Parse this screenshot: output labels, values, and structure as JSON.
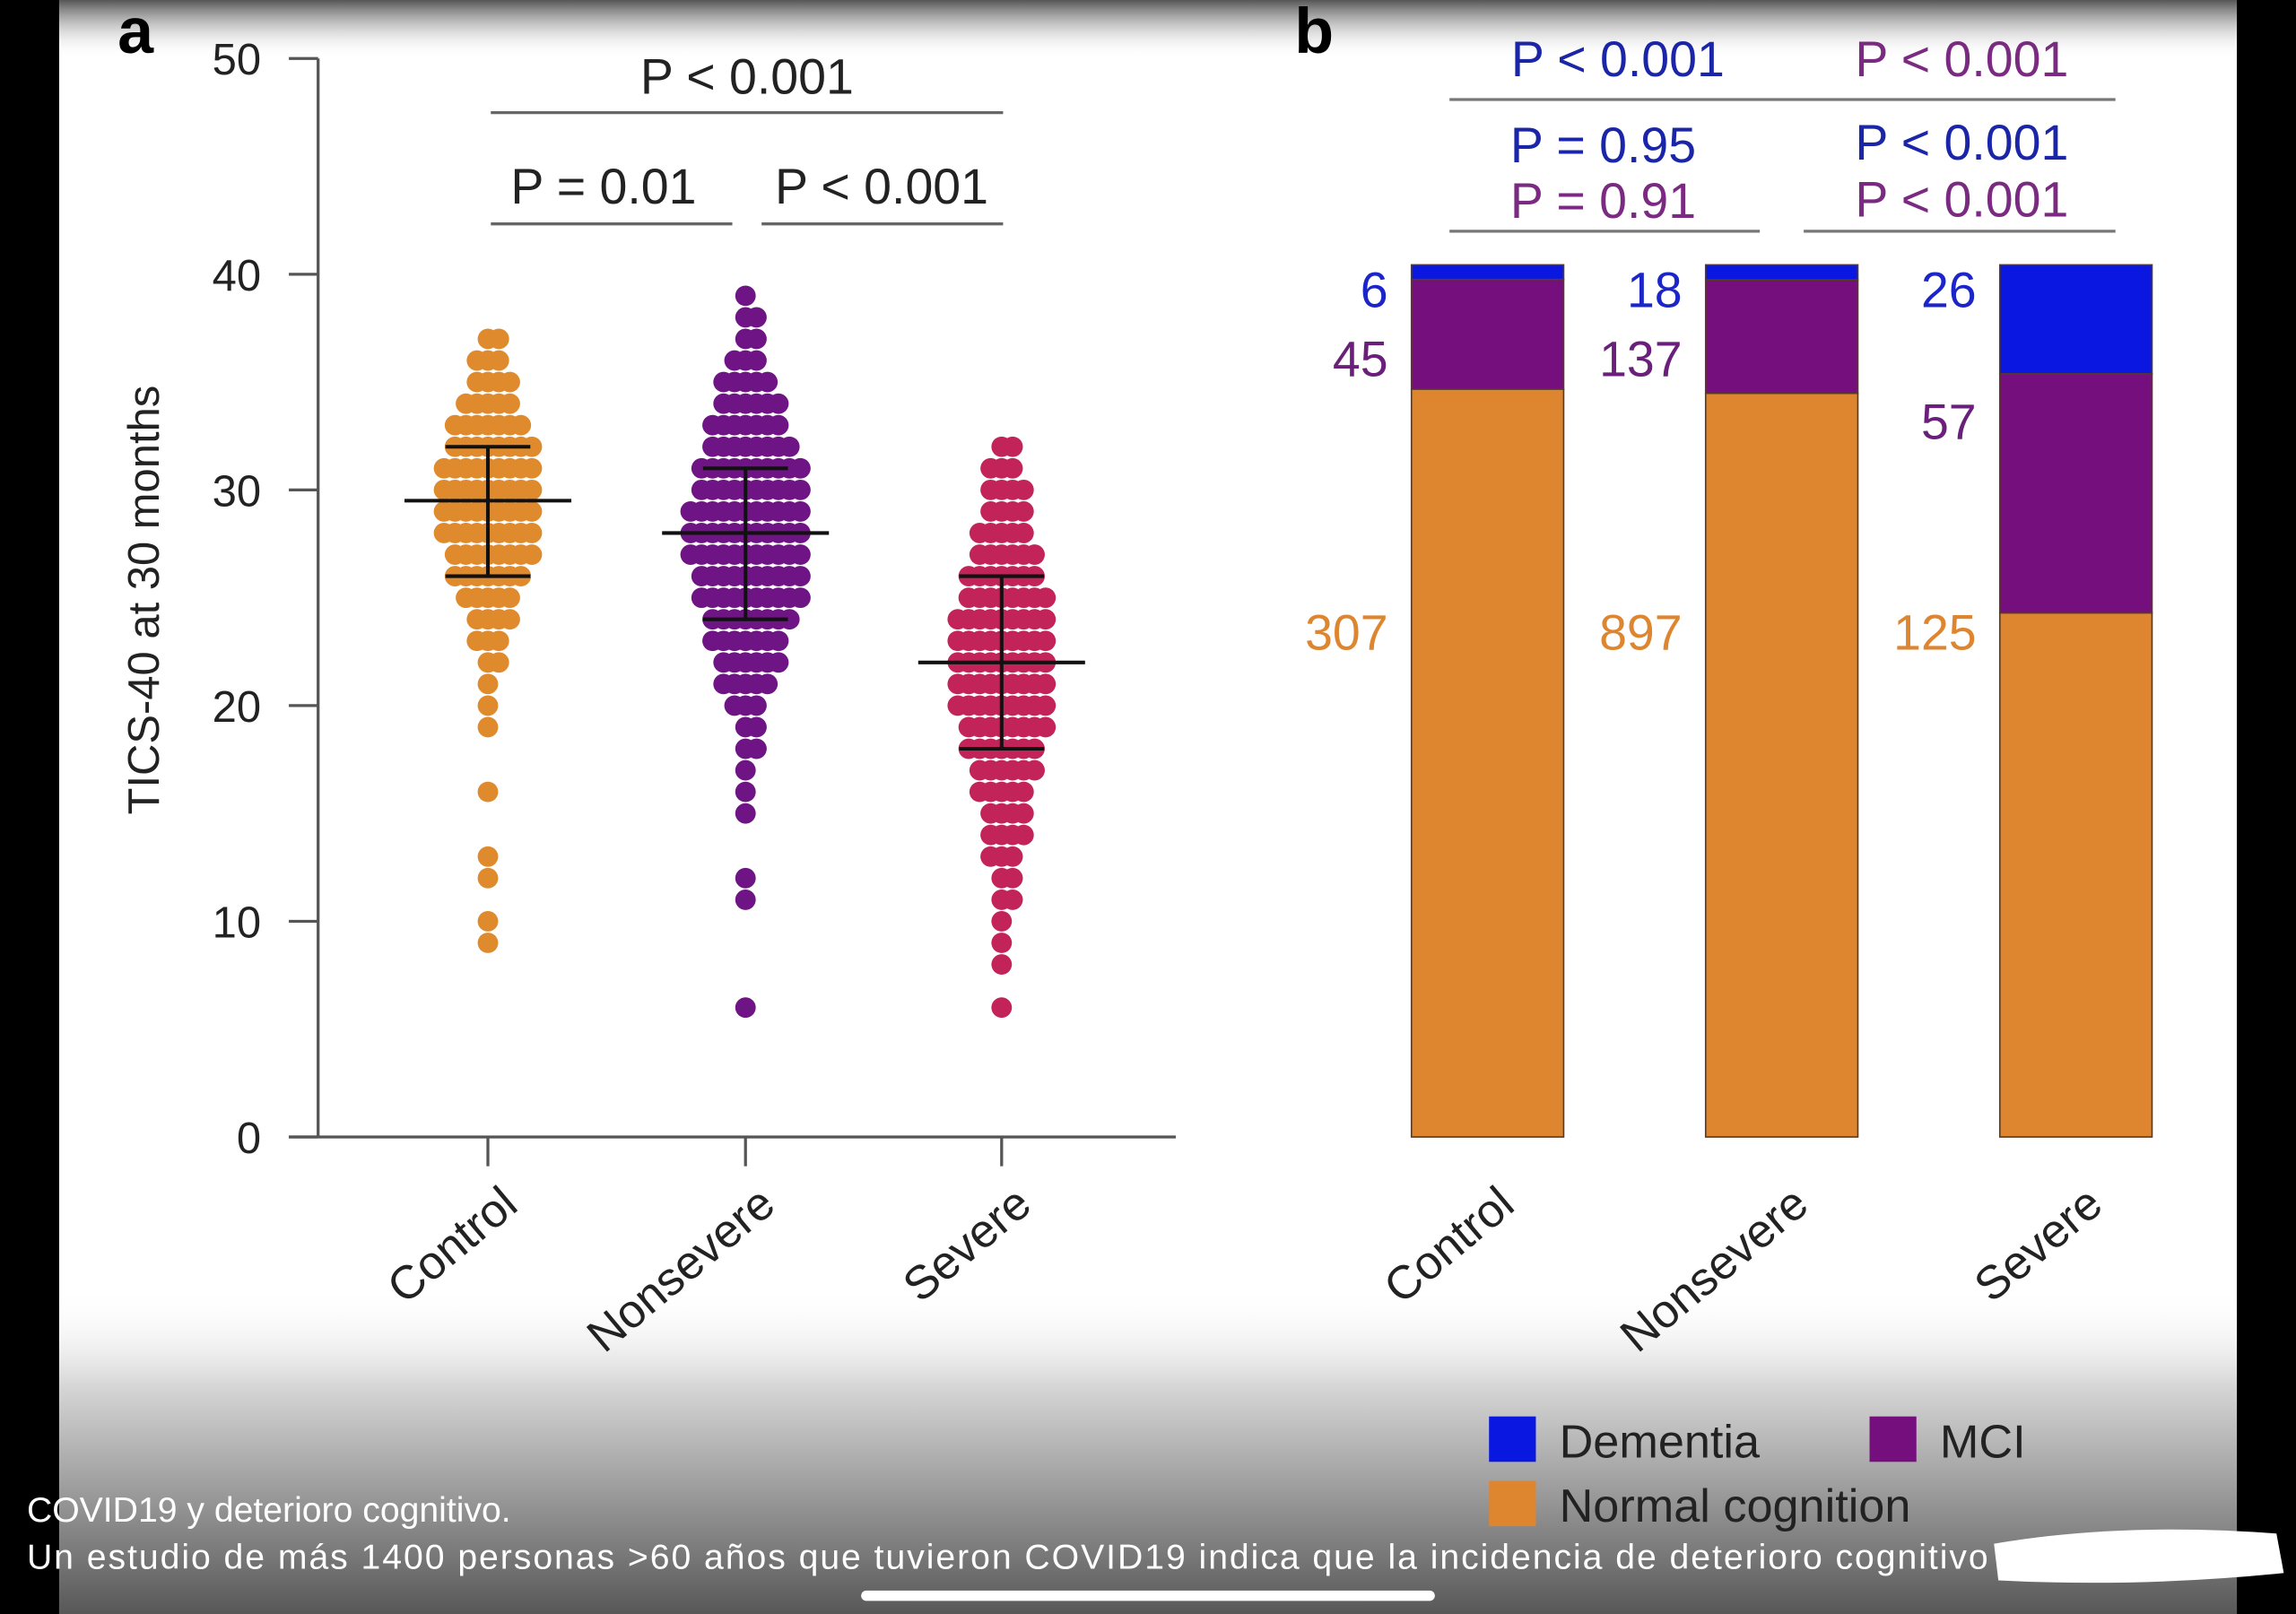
{
  "caption": {
    "line1": "COVID19 y deterioro cognitivo.",
    "line2": "Un estudio de más 1400 personas >60 años que tuvieron COVID19 indica que la incidencia de deterioro cognitivo"
  },
  "colors": {
    "control": "#e08a2e",
    "nonsevere": "#6f1484",
    "severe": "#c2245a",
    "dementia": "#0a17e0",
    "mci": "#760f7e",
    "normal": "#de8530"
  },
  "chart_data": [
    {
      "panel": "a",
      "type": "scatter",
      "ylabel": "TICS-40 at 30 months",
      "ylim": [
        0,
        50
      ],
      "yticks": [
        "0",
        "10",
        "20",
        "30",
        "40",
        "50"
      ],
      "categories": [
        "Control",
        "Nonsevere",
        "Severe"
      ],
      "groups": [
        {
          "name": "Control",
          "median": 29.5,
          "q1": 26,
          "q3": 32,
          "min": 9,
          "max": 37
        },
        {
          "name": "Nonsevere",
          "median": 28,
          "q1": 24,
          "q3": 31,
          "min": 6,
          "max": 39
        },
        {
          "name": "Severe",
          "median": 22,
          "q1": 18,
          "q3": 26,
          "min": 6,
          "max": 32
        }
      ],
      "annotations": [
        {
          "text": "P < 0.001",
          "between": [
            "Control",
            "Severe"
          ]
        },
        {
          "text": "P = 0.01",
          "between": [
            "Control",
            "Nonsevere"
          ]
        },
        {
          "text": "P < 0.001",
          "between": [
            "Nonsevere",
            "Severe"
          ]
        }
      ]
    },
    {
      "panel": "b",
      "type": "bar",
      "stacked": true,
      "normalized": true,
      "categories": [
        "Control",
        "Nonsevere",
        "Severe"
      ],
      "series": [
        {
          "name": "Normal cognition",
          "values": [
            307,
            897,
            125
          ]
        },
        {
          "name": "MCI",
          "values": [
            45,
            137,
            57
          ]
        },
        {
          "name": "Dementia",
          "values": [
            6,
            18,
            26
          ]
        }
      ],
      "annotations": {
        "top": [
          {
            "text": "P < 0.001",
            "color": "dementia"
          },
          {
            "text": "P < 0.001",
            "color": "mci"
          }
        ],
        "left": [
          {
            "text": "P = 0.95",
            "color": "dementia"
          },
          {
            "text": "P = 0.91",
            "color": "mci"
          }
        ],
        "right": [
          {
            "text": "P < 0.001",
            "color": "dementia"
          },
          {
            "text": "P < 0.001",
            "color": "mci"
          }
        ]
      },
      "legend": [
        "Dementia",
        "MCI",
        "Normal cognition"
      ],
      "legend_position": "bottom"
    }
  ],
  "labels": {
    "panel_a": "a",
    "panel_b": "b"
  }
}
